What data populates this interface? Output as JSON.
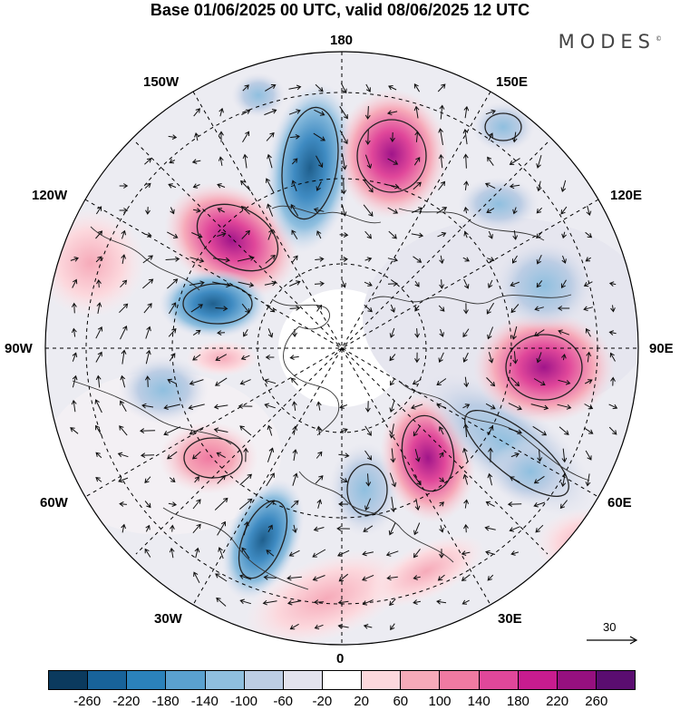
{
  "title": "Base 01/06/2025 00 UTC, valid 08/06/2025 12 UTC",
  "brand": "MODES",
  "brand_mark": "©",
  "map": {
    "projection": "north-polar-stereographic",
    "labels": {
      "n180": "180",
      "w150": "150W",
      "e150": "150E",
      "w120": "120W",
      "e120": "120E",
      "w90": "90W",
      "e90": "90E",
      "w60": "60W",
      "e60": "60E",
      "w30": "30W",
      "e30": "30E",
      "n0": "0"
    }
  },
  "vector_reference": "30",
  "colorbar": {
    "colors": [
      "#0b3a5e",
      "#18639a",
      "#2b82bb",
      "#5aa1cf",
      "#8fbfdf",
      "#bccde4",
      "#e3e3ee",
      "#ffffff",
      "#fcd8dd",
      "#f6aab9",
      "#f07aa2",
      "#e0479a",
      "#c81c8f",
      "#96107f",
      "#5a0d70"
    ],
    "ticks": [
      "-260",
      "-220",
      "-180",
      "-140",
      "-100",
      "-60",
      "-20",
      "20",
      "60",
      "100",
      "140",
      "180",
      "220",
      "260"
    ]
  }
}
